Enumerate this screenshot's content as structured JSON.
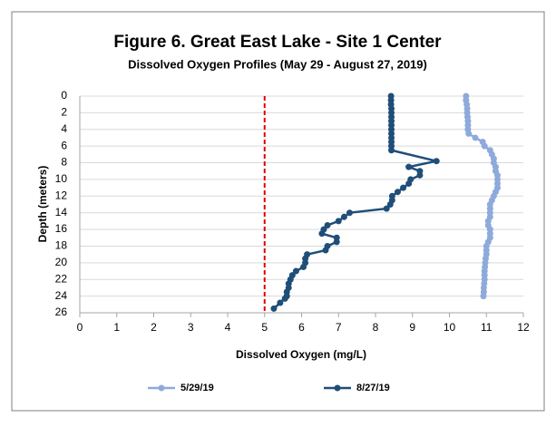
{
  "chart_data": {
    "type": "profile",
    "title": "Figure 6. Great East Lake - Site 1 Center",
    "subtitle": "Dissolved Oxygen Profiles (May 29 - August 27, 2019)",
    "x_label": "Dissolved Oxygen (mg/L)",
    "y_label": "Depth (meters)",
    "xlim": [
      0,
      12
    ],
    "xticks": [
      0,
      1,
      2,
      3,
      4,
      5,
      6,
      7,
      8,
      9,
      10,
      11,
      12
    ],
    "ylim": [
      0,
      26
    ],
    "yticks": [
      0,
      2,
      4,
      6,
      8,
      10,
      12,
      14,
      16,
      18,
      20,
      22,
      24,
      26
    ],
    "y_inverted": true,
    "grid": true,
    "legend": "bottom",
    "reference_line": {
      "x": 5,
      "color": "#e00000"
    },
    "series": [
      {
        "name": "5/29/19",
        "color": "#8eaadb",
        "x": [
          10.45,
          10.45,
          10.47,
          10.48,
          10.48,
          10.49,
          10.5,
          10.5,
          10.5,
          10.52,
          10.7,
          10.9,
          10.95,
          11.1,
          11.15,
          11.2,
          11.2,
          11.25,
          11.25,
          11.3,
          11.3,
          11.3,
          11.3,
          11.25,
          11.2,
          11.15,
          11.1,
          11.1,
          11.1,
          11.1,
          11.05,
          11.05,
          11.1,
          11.1,
          11.1,
          11.05,
          11.0,
          11.0,
          11.0,
          10.98,
          10.97,
          10.96,
          10.95,
          10.95,
          10.95,
          10.94,
          10.93,
          10.93,
          10.92
        ],
        "y": [
          0,
          0.5,
          1,
          1.5,
          2,
          2.5,
          3,
          3.5,
          4,
          4.5,
          5,
          5.5,
          6,
          6.5,
          7,
          7.5,
          8,
          8.5,
          9,
          9.5,
          10,
          10.5,
          11,
          11.5,
          12,
          12.5,
          13,
          13.5,
          14,
          14.5,
          15,
          15.5,
          16,
          16.5,
          17,
          17.5,
          18,
          18.5,
          19,
          19.5,
          20,
          20.5,
          21,
          21.5,
          22,
          22.5,
          23,
          23.5,
          24
        ]
      },
      {
        "name": "8/27/19",
        "color": "#1f4e79",
        "x": [
          8.42,
          8.42,
          8.42,
          8.43,
          8.43,
          8.43,
          8.43,
          8.43,
          8.43,
          8.43,
          8.43,
          8.43,
          8.43,
          8.43,
          9.65,
          8.9,
          9.2,
          9.2,
          8.95,
          8.9,
          8.75,
          8.6,
          8.45,
          8.45,
          8.4,
          8.3,
          7.3,
          7.15,
          7.0,
          6.7,
          6.6,
          6.55,
          6.95,
          6.95,
          6.7,
          6.65,
          6.15,
          6.1,
          6.1,
          6.05,
          5.85,
          5.75,
          5.7,
          5.65,
          5.65,
          5.6,
          5.6,
          5.55,
          5.42,
          5.25
        ],
        "y": [
          0,
          0.5,
          1,
          1.5,
          2,
          2.5,
          3,
          3.5,
          4,
          4.5,
          5,
          5.5,
          6,
          6.5,
          7.8,
          8.5,
          9,
          9.5,
          10,
          10.5,
          11,
          11.5,
          12,
          12.5,
          13,
          13.5,
          14,
          14.5,
          15,
          15.5,
          16,
          16.5,
          17,
          17.5,
          18,
          18.5,
          19,
          19.5,
          20,
          20.5,
          21,
          21.5,
          22,
          22.5,
          23,
          23.5,
          24,
          24.3,
          24.8,
          25.5
        ]
      }
    ]
  }
}
